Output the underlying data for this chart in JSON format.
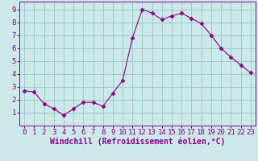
{
  "x": [
    0,
    1,
    2,
    3,
    4,
    5,
    6,
    7,
    8,
    9,
    10,
    11,
    12,
    13,
    14,
    15,
    16,
    17,
    18,
    19,
    20,
    21,
    22,
    23
  ],
  "y": [
    2.7,
    2.6,
    1.7,
    1.3,
    0.8,
    1.3,
    1.8,
    1.8,
    1.5,
    2.5,
    3.5,
    6.8,
    9.0,
    8.7,
    8.2,
    8.5,
    8.7,
    8.3,
    7.9,
    7.0,
    6.0,
    5.3,
    4.7,
    4.1
  ],
  "line_color": "#8b008b",
  "marker": "D",
  "marker_size": 2.5,
  "bg_color": "#cce8e8",
  "grid_color": "#99cccc",
  "axis_color": "#8b008b",
  "tick_color": "#8b008b",
  "xlabel": "Windchill (Refroidissement éolien,°C)",
  "xlabel_fontsize": 7,
  "xlim": [
    -0.5,
    23.5
  ],
  "ylim": [
    0,
    9.6
  ],
  "yticks": [
    1,
    2,
    3,
    4,
    5,
    6,
    7,
    8,
    9
  ],
  "xticks": [
    0,
    1,
    2,
    3,
    4,
    5,
    6,
    7,
    8,
    9,
    10,
    11,
    12,
    13,
    14,
    15,
    16,
    17,
    18,
    19,
    20,
    21,
    22,
    23
  ],
  "tick_fontsize": 6.5
}
